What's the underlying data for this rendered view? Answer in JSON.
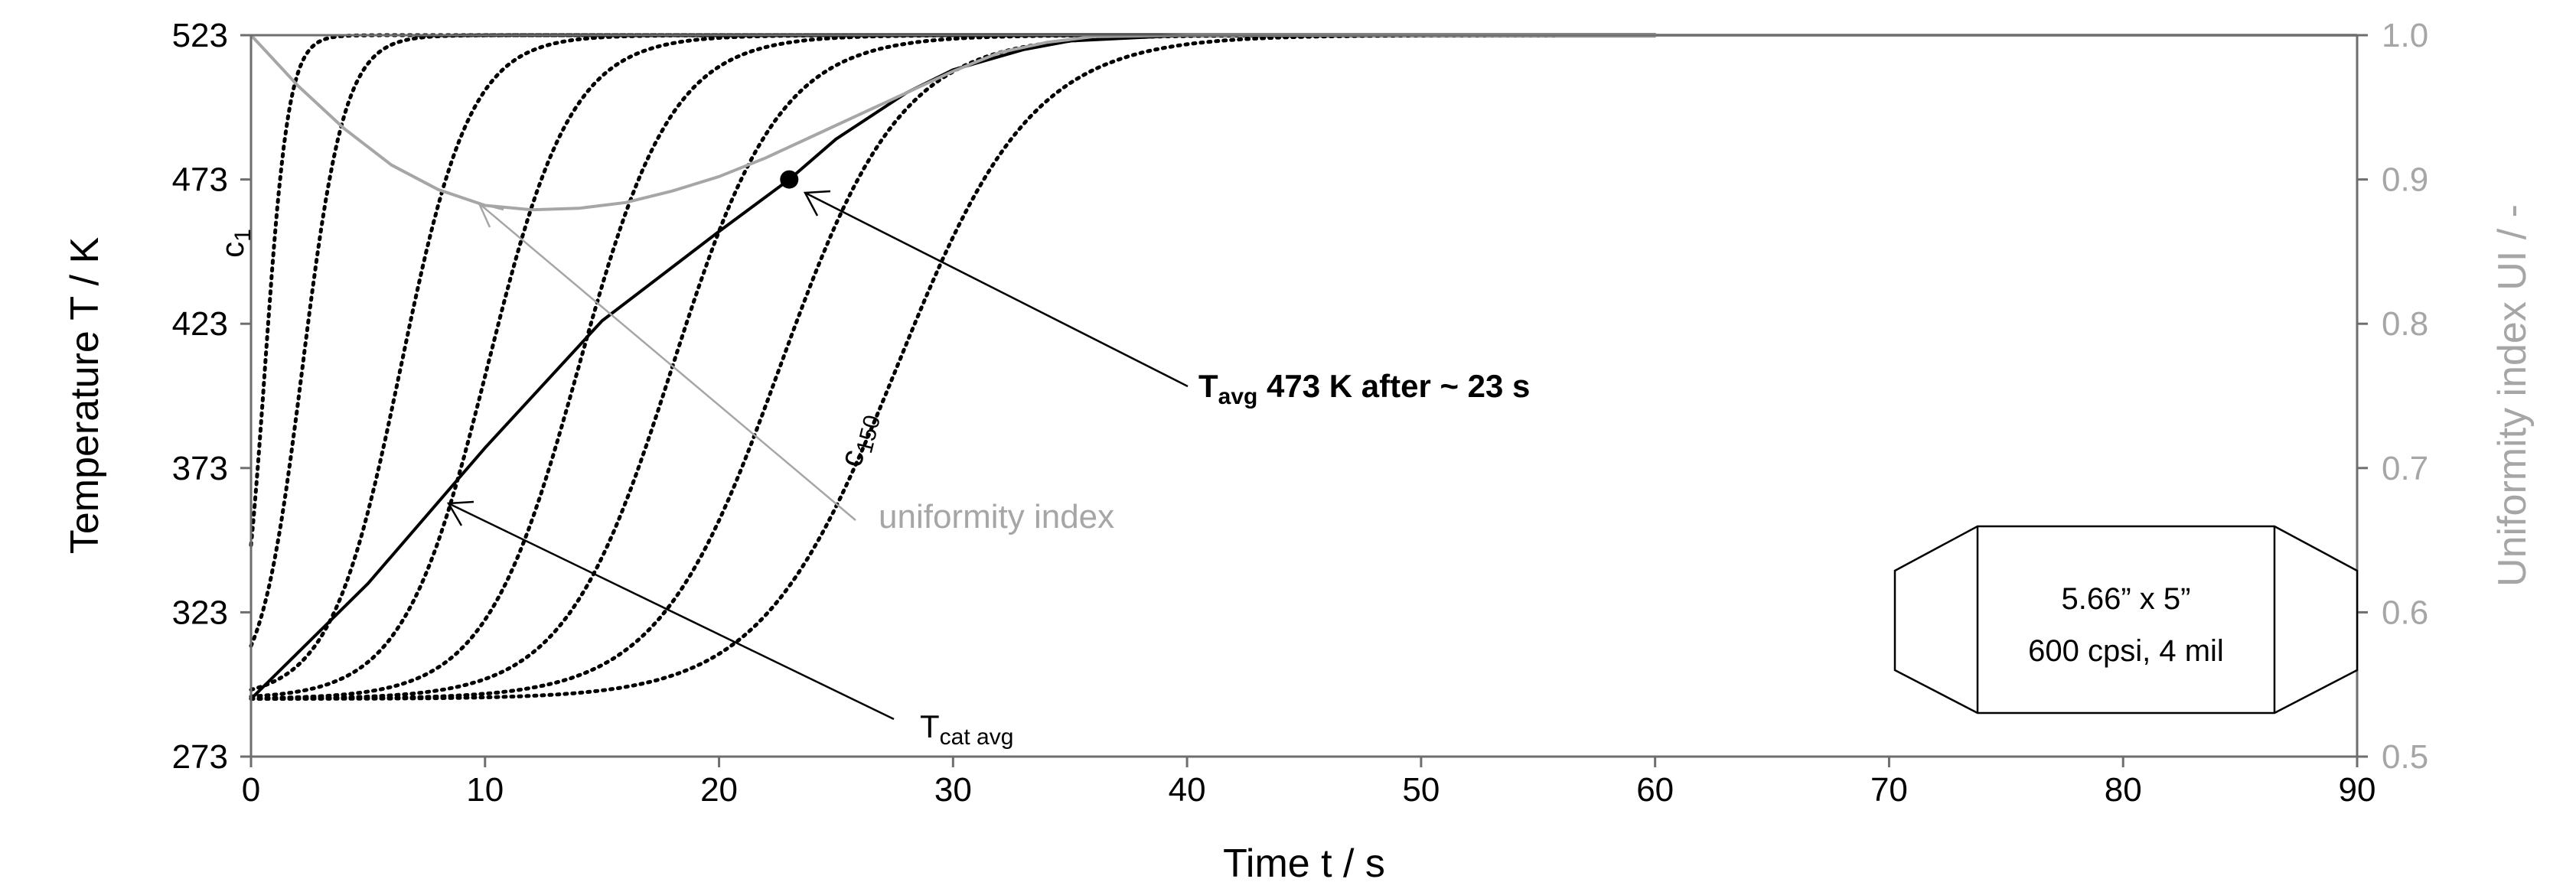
{
  "chart_data": {
    "type": "line",
    "title": "",
    "xlabel": "Time  t  / s",
    "ylabel_left": "Temperature T / K",
    "ylabel_right": "Uniformity index UI / -",
    "xlim": [
      0,
      90
    ],
    "ylim_left": [
      273,
      523
    ],
    "ylim_right": [
      0.5,
      1.0
    ],
    "x_ticks": [
      "0",
      "10",
      "20",
      "30",
      "40",
      "50",
      "60",
      "70",
      "80",
      "90"
    ],
    "y_ticks_left": [
      "273",
      "323",
      "373",
      "423",
      "473",
      "523"
    ],
    "y_ticks_right": [
      "0.5",
      "0.6",
      "0.7",
      "0.8",
      "0.9",
      "1.0"
    ],
    "grid": false,
    "channel_curves": {
      "style": "dotted",
      "color": "#000000",
      "start_temperature": 293,
      "end_temperature": 523,
      "midpoint_times": [
        0.6,
        2.2,
        6.4,
        10.1,
        14.0,
        18.0,
        22.6,
        27.6
      ],
      "time_constants": [
        0.5,
        0.9,
        1.5,
        1.8,
        2.0,
        2.3,
        2.6,
        2.9
      ],
      "first_label": "c",
      "first_label_sub": "1",
      "last_label": "c",
      "last_label_sub": "150"
    },
    "series": [
      {
        "name": "T",
        "name_sub": "cat avg",
        "color": "#000000",
        "axis": "left",
        "x": [
          0,
          5,
          10,
          15,
          20,
          23,
          25,
          28,
          30,
          33,
          35,
          40,
          45,
          90
        ],
        "y": [
          293,
          333,
          380,
          424,
          455,
          473,
          487,
          503,
          511,
          518,
          521,
          523,
          523,
          523
        ]
      },
      {
        "name": "uniformity index",
        "color": "#a6a6a6",
        "axis": "right",
        "x": [
          0,
          2,
          4,
          6,
          8,
          10,
          12,
          14,
          16,
          18,
          20,
          22,
          24,
          26,
          28,
          30,
          32,
          34,
          36,
          40,
          45,
          90
        ],
        "y": [
          1.0,
          0.965,
          0.935,
          0.91,
          0.893,
          0.882,
          0.879,
          0.88,
          0.884,
          0.892,
          0.902,
          0.915,
          0.93,
          0.945,
          0.96,
          0.975,
          0.988,
          0.995,
          0.999,
          1.0,
          1.0,
          1.0
        ]
      }
    ],
    "highlight_point": {
      "x": 23,
      "y": 473
    },
    "annotations": {
      "tavg_prefix": "T",
      "tavg_sub": "avg",
      "tavg_rest": " 473 K after ~ 23 s",
      "ui_label": "uniformity index",
      "tcat_label": "T",
      "tcat_sub": "cat avg"
    },
    "substrate_box": {
      "line1": "5.66” x 5”",
      "line2": "600 cpsi, 4 mil"
    }
  }
}
